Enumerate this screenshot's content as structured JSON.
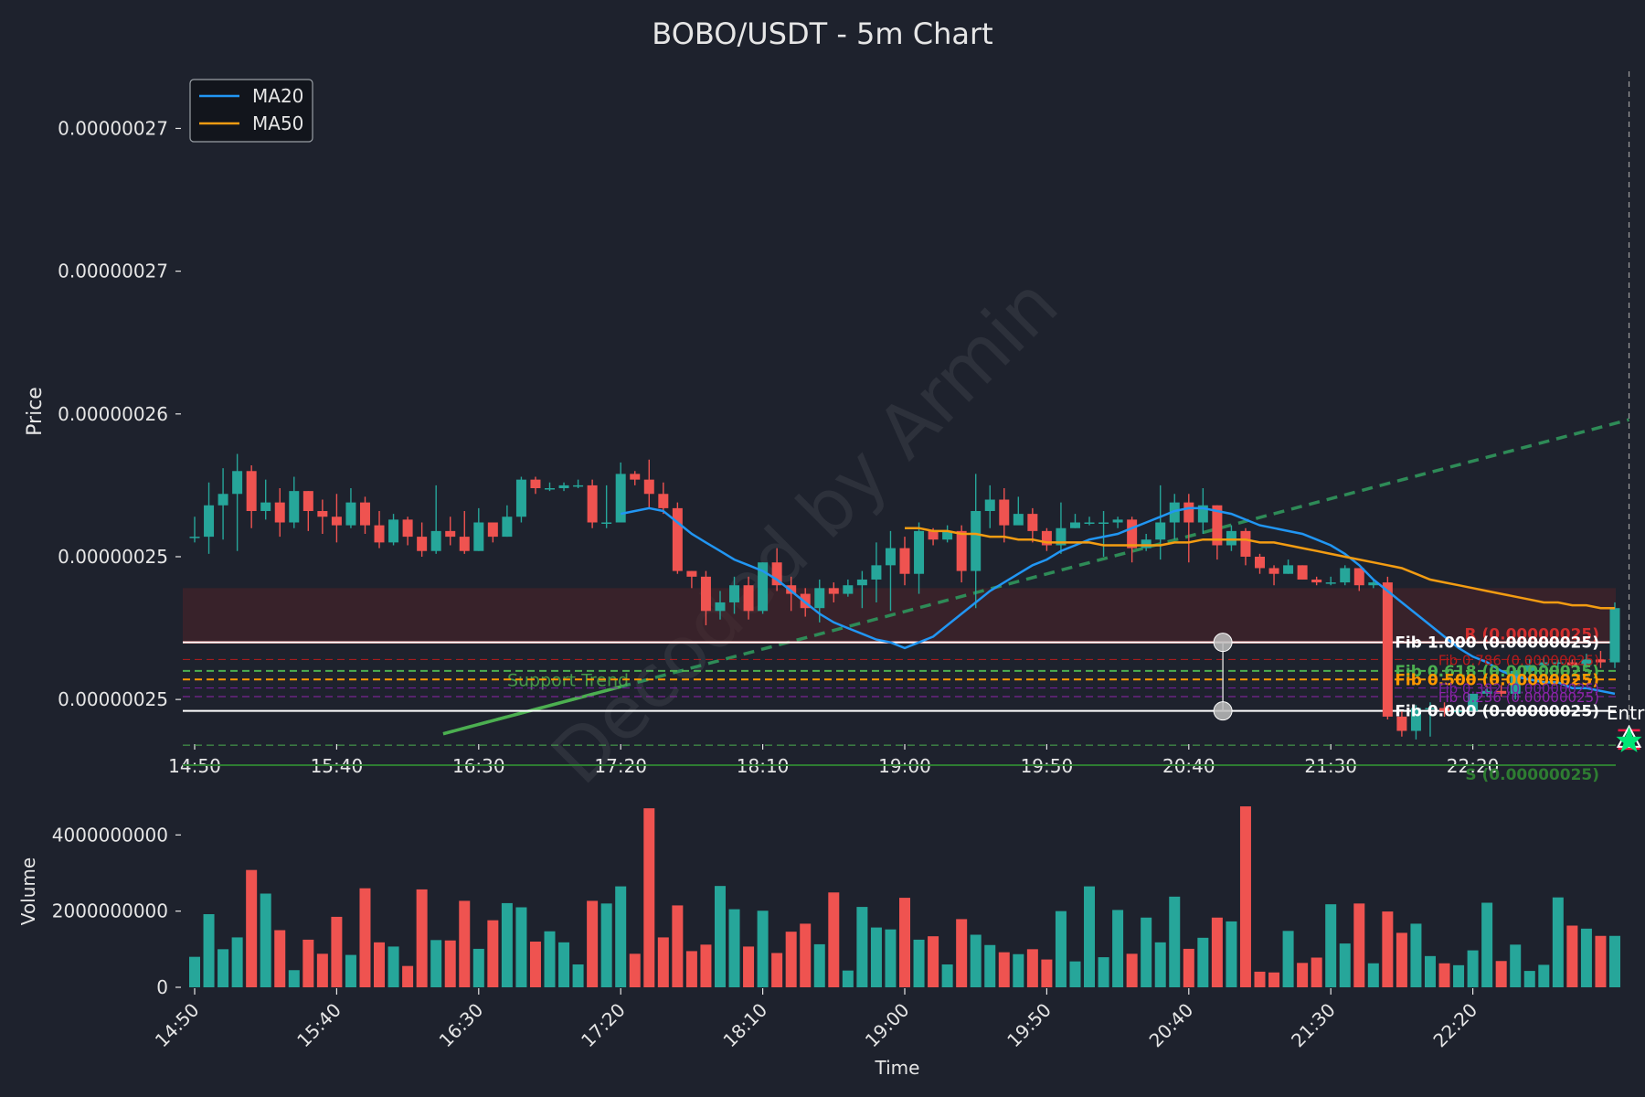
{
  "chart_data": {
    "type": "candlestick",
    "title": "BOBO/USDT - 5m Chart",
    "watermark": "Decoded by Armin",
    "colors": {
      "bg": "#1e222d",
      "text": "#e6e6e6",
      "up": "#26a69a",
      "down": "#ef5350",
      "ma20": "#2196f3",
      "ma50": "#f39c12",
      "trend": "#2e8b57",
      "support": "#2e7d32",
      "resistance_zone": "#4a2328"
    },
    "price_panel": {
      "ylabel": "Price",
      "ylim": [
        2.465e-07,
        2.7e-07
      ],
      "yticks": [
        {
          "value": 2.48e-07,
          "label": "0.00000025"
        },
        {
          "value": 2.53e-07,
          "label": "0.00000025"
        },
        {
          "value": 2.58e-07,
          "label": "0.00000026"
        },
        {
          "value": 2.63e-07,
          "label": "0.00000027"
        },
        {
          "value": 2.68e-07,
          "label": "0.00000027"
        }
      ]
    },
    "volume_panel": {
      "ylabel": "Volume",
      "xlabel": "Time",
      "ylim": [
        0,
        4800000000
      ],
      "yticks": [
        {
          "value": 0,
          "label": "0"
        },
        {
          "value": 2000000000,
          "label": "2000000000"
        },
        {
          "value": 4000000000,
          "label": "4000000000"
        }
      ]
    },
    "x": {
      "count": 101,
      "ticks": [
        {
          "index": 0,
          "label": "14:50"
        },
        {
          "index": 10,
          "label": "15:40"
        },
        {
          "index": 20,
          "label": "16:30"
        },
        {
          "index": 30,
          "label": "17:20"
        },
        {
          "index": 40,
          "label": "18:10"
        },
        {
          "index": 50,
          "label": "19:00"
        },
        {
          "index": 60,
          "label": "19:50"
        },
        {
          "index": 70,
          "label": "20:40"
        },
        {
          "index": 80,
          "label": "21:30"
        },
        {
          "index": 90,
          "label": "22:20"
        }
      ]
    },
    "legend": {
      "position": "top-left",
      "items": [
        {
          "name": "MA20",
          "color": "#2196f3"
        },
        {
          "name": "MA50",
          "color": "#f39c12"
        }
      ]
    },
    "candles": [
      [
        2.537e-07,
        2.537e-07,
        2.544e-07,
        2.535e-07
      ],
      [
        2.537e-07,
        2.548e-07,
        2.556e-07,
        2.531e-07
      ],
      [
        2.548e-07,
        2.552e-07,
        2.561e-07,
        2.536e-07
      ],
      [
        2.552e-07,
        2.56e-07,
        2.566e-07,
        2.532e-07
      ],
      [
        2.56e-07,
        2.546e-07,
        2.562e-07,
        2.54e-07
      ],
      [
        2.546e-07,
        2.549e-07,
        2.557e-07,
        2.543e-07
      ],
      [
        2.549e-07,
        2.542e-07,
        2.554e-07,
        2.537e-07
      ],
      [
        2.542e-07,
        2.553e-07,
        2.558e-07,
        2.54e-07
      ],
      [
        2.553e-07,
        2.546e-07,
        2.553e-07,
        2.539e-07
      ],
      [
        2.546e-07,
        2.544e-07,
        2.55e-07,
        2.538e-07
      ],
      [
        2.544e-07,
        2.541e-07,
        2.552e-07,
        2.535e-07
      ],
      [
        2.541e-07,
        2.549e-07,
        2.554e-07,
        2.54e-07
      ],
      [
        2.549e-07,
        2.541e-07,
        2.551e-07,
        2.538e-07
      ],
      [
        2.541e-07,
        2.535e-07,
        2.546e-07,
        2.533e-07
      ],
      [
        2.535e-07,
        2.543e-07,
        2.545e-07,
        2.534e-07
      ],
      [
        2.543e-07,
        2.537e-07,
        2.544e-07,
        2.534e-07
      ],
      [
        2.537e-07,
        2.532e-07,
        2.542e-07,
        2.53e-07
      ],
      [
        2.532e-07,
        2.539e-07,
        2.555e-07,
        2.531e-07
      ],
      [
        2.539e-07,
        2.537e-07,
        2.544e-07,
        2.534e-07
      ],
      [
        2.537e-07,
        2.532e-07,
        2.546e-07,
        2.531e-07
      ],
      [
        2.532e-07,
        2.542e-07,
        2.547e-07,
        2.532e-07
      ],
      [
        2.542e-07,
        2.537e-07,
        2.542e-07,
        2.535e-07
      ],
      [
        2.537e-07,
        2.544e-07,
        2.548e-07,
        2.537e-07
      ],
      [
        2.544e-07,
        2.557e-07,
        2.558e-07,
        2.542e-07
      ],
      [
        2.557e-07,
        2.554e-07,
        2.558e-07,
        2.552e-07
      ],
      [
        2.554e-07,
        2.554e-07,
        2.556e-07,
        2.553e-07
      ],
      [
        2.554e-07,
        2.555e-07,
        2.556e-07,
        2.553e-07
      ],
      [
        2.555e-07,
        2.555e-07,
        2.557e-07,
        2.554e-07
      ],
      [
        2.555e-07,
        2.542e-07,
        2.557e-07,
        2.54e-07
      ],
      [
        2.542e-07,
        2.542e-07,
        2.555e-07,
        2.54e-07
      ],
      [
        2.542e-07,
        2.559e-07,
        2.563e-07,
        2.542e-07
      ],
      [
        2.559e-07,
        2.557e-07,
        2.56e-07,
        2.555e-07
      ],
      [
        2.557e-07,
        2.552e-07,
        2.564e-07,
        2.547e-07
      ],
      [
        2.552e-07,
        2.547e-07,
        2.556e-07,
        2.545e-07
      ],
      [
        2.547e-07,
        2.525e-07,
        2.549e-07,
        2.524e-07
      ],
      [
        2.525e-07,
        2.523e-07,
        2.525e-07,
        2.519e-07
      ],
      [
        2.523e-07,
        2.511e-07,
        2.525e-07,
        2.506e-07
      ],
      [
        2.511e-07,
        2.514e-07,
        2.518e-07,
        2.508e-07
      ],
      [
        2.514e-07,
        2.52e-07,
        2.523e-07,
        2.51e-07
      ],
      [
        2.52e-07,
        2.511e-07,
        2.523e-07,
        2.508e-07
      ],
      [
        2.511e-07,
        2.528e-07,
        2.528e-07,
        2.51e-07
      ],
      [
        2.528e-07,
        2.52e-07,
        2.533e-07,
        2.518e-07
      ],
      [
        2.52e-07,
        2.517e-07,
        2.523e-07,
        2.511e-07
      ],
      [
        2.517e-07,
        2.512e-07,
        2.519e-07,
        2.509e-07
      ],
      [
        2.512e-07,
        2.519e-07,
        2.522e-07,
        2.507e-07
      ],
      [
        2.519e-07,
        2.517e-07,
        2.521e-07,
        2.514e-07
      ],
      [
        2.517e-07,
        2.52e-07,
        2.522e-07,
        2.516e-07
      ],
      [
        2.52e-07,
        2.522e-07,
        2.525e-07,
        2.512e-07
      ],
      [
        2.522e-07,
        2.527e-07,
        2.535e-07,
        2.514e-07
      ],
      [
        2.527e-07,
        2.533e-07,
        2.539e-07,
        2.511e-07
      ],
      [
        2.533e-07,
        2.524e-07,
        2.537e-07,
        2.52e-07
      ],
      [
        2.524e-07,
        2.539e-07,
        2.542e-07,
        2.517e-07
      ],
      [
        2.539e-07,
        2.536e-07,
        2.54e-07,
        2.534e-07
      ],
      [
        2.536e-07,
        2.539e-07,
        2.541e-07,
        2.535e-07
      ],
      [
        2.539e-07,
        2.525e-07,
        2.541e-07,
        2.521e-07
      ],
      [
        2.525e-07,
        2.546e-07,
        2.559e-07,
        2.512e-07
      ],
      [
        2.546e-07,
        2.55e-07,
        2.555e-07,
        2.54e-07
      ],
      [
        2.55e-07,
        2.541e-07,
        2.554e-07,
        2.535e-07
      ],
      [
        2.541e-07,
        2.545e-07,
        2.551e-07,
        2.543e-07
      ],
      [
        2.545e-07,
        2.539e-07,
        2.547e-07,
        2.535e-07
      ],
      [
        2.539e-07,
        2.534e-07,
        2.54e-07,
        2.532e-07
      ],
      [
        2.534e-07,
        2.54e-07,
        2.549e-07,
        2.531e-07
      ],
      [
        2.54e-07,
        2.542e-07,
        2.545e-07,
        2.54e-07
      ],
      [
        2.542e-07,
        2.542e-07,
        2.544e-07,
        2.541e-07
      ],
      [
        2.542e-07,
        2.542e-07,
        2.546e-07,
        2.53e-07
      ],
      [
        2.542e-07,
        2.543e-07,
        2.544e-07,
        2.54e-07
      ],
      [
        2.543e-07,
        2.533e-07,
        2.544e-07,
        2.528e-07
      ],
      [
        2.533e-07,
        2.536e-07,
        2.538e-07,
        2.532e-07
      ],
      [
        2.536e-07,
        2.542e-07,
        2.555e-07,
        2.529e-07
      ],
      [
        2.542e-07,
        2.549e-07,
        2.552e-07,
        2.536e-07
      ],
      [
        2.549e-07,
        2.542e-07,
        2.552e-07,
        2.528e-07
      ],
      [
        2.542e-07,
        2.548e-07,
        2.554e-07,
        2.538e-07
      ],
      [
        2.548e-07,
        2.534e-07,
        2.548e-07,
        2.529e-07
      ],
      [
        2.534e-07,
        2.539e-07,
        2.541e-07,
        2.532e-07
      ],
      [
        2.539e-07,
        2.53e-07,
        2.54e-07,
        2.527e-07
      ],
      [
        2.53e-07,
        2.526e-07,
        2.531e-07,
        2.524e-07
      ],
      [
        2.526e-07,
        2.524e-07,
        2.527e-07,
        2.52e-07
      ],
      [
        2.524e-07,
        2.527e-07,
        2.529e-07,
        2.524e-07
      ],
      [
        2.527e-07,
        2.522e-07,
        2.527e-07,
        2.522e-07
      ],
      [
        2.522e-07,
        2.521e-07,
        2.523e-07,
        2.52e-07
      ],
      [
        2.521e-07,
        2.521e-07,
        2.523e-07,
        2.52e-07
      ],
      [
        2.521e-07,
        2.526e-07,
        2.527e-07,
        2.52e-07
      ],
      [
        2.526e-07,
        2.52e-07,
        2.526e-07,
        2.518e-07
      ],
      [
        2.52e-07,
        2.521e-07,
        2.522e-07,
        2.519e-07
      ],
      [
        2.521e-07,
        2.474e-07,
        2.523e-07,
        2.473e-07
      ],
      [
        2.474e-07,
        2.469e-07,
        2.476e-07,
        2.467e-07
      ],
      [
        2.469e-07,
        2.477e-07,
        2.478e-07,
        2.466e-07
      ],
      [
        2.477e-07,
        2.477e-07,
        2.479e-07,
        2.467e-07
      ],
      [
        2.477e-07,
        2.476e-07,
        2.479e-07,
        2.474e-07
      ],
      [
        2.476e-07,
        2.476e-07,
        2.477e-07,
        2.475e-07
      ],
      [
        2.476e-07,
        2.482e-07,
        2.482e-07,
        2.476e-07
      ],
      [
        2.482e-07,
        2.483e-07,
        2.484e-07,
        2.481e-07
      ],
      [
        2.483e-07,
        2.482e-07,
        2.485e-07,
        2.481e-07
      ],
      [
        2.482e-07,
        2.49e-07,
        2.491e-07,
        2.48e-07
      ],
      [
        2.49e-07,
        2.492e-07,
        2.494e-07,
        2.49e-07
      ],
      [
        2.492e-07,
        2.493e-07,
        2.495e-07,
        2.491e-07
      ],
      [
        2.493e-07,
        2.493e-07,
        2.494e-07,
        2.491e-07
      ],
      [
        2.493e-07,
        2.492e-07,
        2.494e-07,
        2.491e-07
      ],
      [
        2.492e-07,
        2.494e-07,
        2.496e-07,
        2.491e-07
      ],
      [
        2.494e-07,
        2.493e-07,
        2.497e-07,
        2.491e-07
      ],
      [
        2.493e-07,
        2.512e-07,
        2.514e-07,
        2.491e-07
      ]
    ],
    "volumes": [
      800000000,
      1920000000,
      1000000000,
      1310000000,
      3080000000,
      2460000000,
      1500000000,
      450000000,
      1250000000,
      880000000,
      1850000000,
      850000000,
      2600000000,
      1180000000,
      1070000000,
      560000000,
      2570000000,
      1240000000,
      1230000000,
      2270000000,
      1010000000,
      1760000000,
      2210000000,
      2100000000,
      1200000000,
      1470000000,
      1180000000,
      600000000,
      2270000000,
      2200000000,
      2650000000,
      880000000,
      4700000000,
      1310000000,
      2150000000,
      950000000,
      1120000000,
      2660000000,
      2050000000,
      1070000000,
      2010000000,
      900000000,
      1460000000,
      1670000000,
      1130000000,
      2490000000,
      440000000,
      2110000000,
      1570000000,
      1520000000,
      2350000000,
      1250000000,
      1340000000,
      600000000,
      1790000000,
      1380000000,
      1110000000,
      920000000,
      870000000,
      1000000000,
      730000000,
      2000000000,
      680000000,
      2650000000,
      790000000,
      2030000000,
      880000000,
      1830000000,
      1180000000,
      2380000000,
      1010000000,
      1300000000,
      1830000000,
      1730000000,
      4750000000,
      410000000,
      390000000,
      1480000000,
      640000000,
      780000000,
      2180000000,
      1150000000,
      2200000000,
      630000000,
      1990000000,
      1430000000,
      1670000000,
      820000000,
      630000000,
      580000000,
      970000000,
      2220000000,
      690000000,
      1120000000,
      430000000,
      590000000,
      2360000000,
      1620000000,
      1540000000,
      1350000000,
      1350000000
    ],
    "ma20": {
      "start": 30,
      "values": [
        2.545e-07,
        2.546e-07,
        2.547e-07,
        2.546e-07,
        2.542e-07,
        2.538e-07,
        2.535e-07,
        2.532e-07,
        2.529e-07,
        2.527e-07,
        2.525e-07,
        2.522e-07,
        2.518e-07,
        2.514e-07,
        2.51e-07,
        2.507e-07,
        2.505e-07,
        2.503e-07,
        2.501e-07,
        2.5e-07,
        2.498e-07,
        2.5e-07,
        2.502e-07,
        2.506e-07,
        2.51e-07,
        2.514e-07,
        2.518e-07,
        2.521e-07,
        2.524e-07,
        2.527e-07,
        2.529e-07,
        2.532e-07,
        2.534e-07,
        2.536e-07,
        2.537e-07,
        2.538e-07,
        2.54e-07,
        2.542e-07,
        2.544e-07,
        2.546e-07,
        2.547e-07,
        2.547e-07,
        2.546e-07,
        2.545e-07,
        2.543e-07,
        2.541e-07,
        2.54e-07,
        2.539e-07,
        2.538e-07,
        2.536e-07,
        2.534e-07,
        2.531e-07,
        2.527e-07,
        2.522e-07,
        2.518e-07,
        2.514e-07,
        2.51e-07,
        2.506e-07,
        2.502e-07,
        2.498e-07,
        2.495e-07,
        2.493e-07,
        2.49e-07,
        2.488e-07,
        2.487e-07,
        2.486e-07,
        2.486e-07,
        2.484e-07,
        2.484e-07,
        2.483e-07,
        2.482e-07
      ]
    },
    "ma50": {
      "start": 50,
      "values": [
        2.54e-07,
        2.54e-07,
        2.539e-07,
        2.539e-07,
        2.538e-07,
        2.538e-07,
        2.537e-07,
        2.537e-07,
        2.536e-07,
        2.536e-07,
        2.535e-07,
        2.535e-07,
        2.535e-07,
        2.535e-07,
        2.534e-07,
        2.534e-07,
        2.534e-07,
        2.534e-07,
        2.534e-07,
        2.535e-07,
        2.535e-07,
        2.536e-07,
        2.536e-07,
        2.536e-07,
        2.536e-07,
        2.535e-07,
        2.535e-07,
        2.534e-07,
        2.533e-07,
        2.532e-07,
        2.531e-07,
        2.53e-07,
        2.529e-07,
        2.528e-07,
        2.527e-07,
        2.526e-07,
        2.524e-07,
        2.522e-07,
        2.521e-07,
        2.52e-07,
        2.519e-07,
        2.518e-07,
        2.517e-07,
        2.516e-07,
        2.515e-07,
        2.514e-07,
        2.514e-07,
        2.513e-07,
        2.513e-07,
        2.512e-07,
        2.512e-07
      ]
    },
    "resistance_zone": {
      "from": 2.5e-07,
      "to": 2.519e-07
    },
    "horizontal_levels": [
      {
        "name": "resistance",
        "value": 2.5e-07,
        "label": "R (0.00000025)",
        "color": "#d32f2f",
        "style": "solid",
        "width": 2.5
      },
      {
        "name": "fib-1000",
        "value": 2.5e-07,
        "label": "Fib 1.000 (0.00000025)",
        "color": "#ffffff",
        "style": "solid",
        "width": 2
      },
      {
        "name": "fib-786",
        "value": 2.494e-07,
        "label": "Fib 0.786 (0.00000025)",
        "color": "#b71c1c",
        "style": "dash",
        "width": 1
      },
      {
        "name": "fib-618",
        "value": 2.49e-07,
        "label": "Fib 0.618 (0.00000025)",
        "color": "#4caf50",
        "style": "dash",
        "width": 2
      },
      {
        "name": "fib-500",
        "value": 2.487e-07,
        "label": "Fib 0.500 (0.00000025)",
        "color": "#ff9800",
        "style": "dash",
        "width": 2
      },
      {
        "name": "fib-382",
        "value": 2.484e-07,
        "label": "Fib 0.382 (0.00000025)",
        "color": "#7b1fa2",
        "style": "dash",
        "width": 1
      },
      {
        "name": "fib-236",
        "value": 2.481e-07,
        "label": "Fib 0.236 (0.00000025)",
        "color": "#8e24aa",
        "style": "dash",
        "width": 1
      },
      {
        "name": "fib-000",
        "value": 2.476e-07,
        "label": "Fib 0.000 (0.00000025)",
        "color": "#ffffff",
        "style": "solid",
        "width": 2
      },
      {
        "name": "entry-dashed",
        "value": 2.464e-07,
        "label": "",
        "color": "#4caf50",
        "style": "dash",
        "width": 1
      },
      {
        "name": "support",
        "value": 2.457e-07,
        "label": "S (0.00000025)",
        "color": "#2e7d32",
        "style": "solid",
        "width": 2
      }
    ],
    "support_trend": {
      "label": "Support Trend",
      "from": [
        17.5,
        2.468e-07
      ],
      "to": [
        101,
        2.578e-07
      ]
    },
    "swing_points": [
      [
        72.4,
        2.5e-07
      ],
      [
        72.4,
        2.476e-07
      ]
    ],
    "entry": {
      "label": "Entry",
      "index": 101,
      "value": 2.466e-07
    }
  }
}
